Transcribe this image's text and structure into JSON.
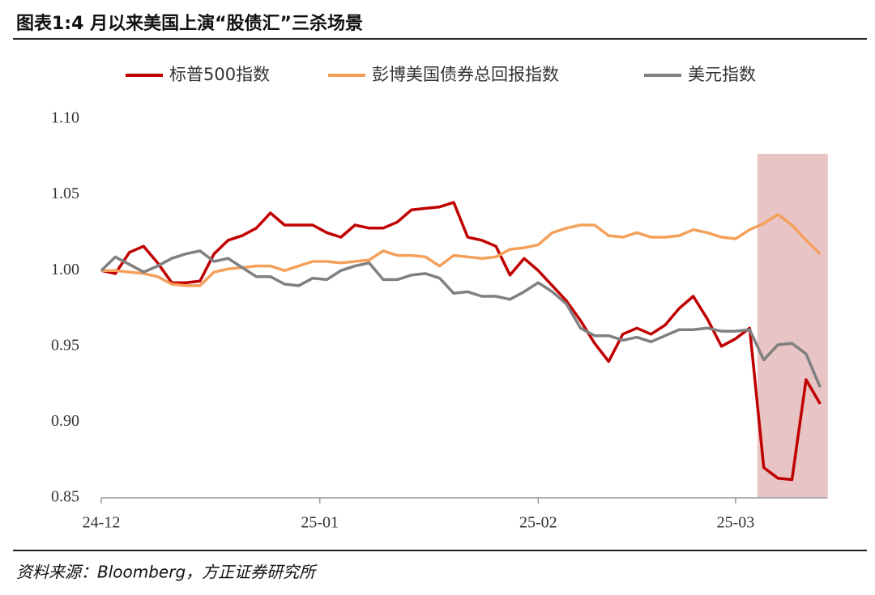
{
  "title": "图表1:4 月以来美国上演“股债汇”三杀场景",
  "source": "资料来源：Bloomberg，方正证券研究所",
  "chart_data": {
    "type": "line",
    "x": [
      0,
      2,
      4,
      6,
      8,
      10,
      12,
      14,
      16,
      18,
      20,
      22,
      24,
      26,
      28,
      30,
      32,
      34,
      36,
      38,
      40,
      42,
      44,
      46,
      48,
      50,
      52,
      54,
      56,
      58,
      60,
      62,
      64,
      66,
      68,
      70,
      72,
      74,
      76,
      78,
      80,
      82,
      84,
      86,
      88,
      90,
      92,
      94,
      96,
      98,
      100,
      102
    ],
    "xlim": [
      0,
      103
    ],
    "xticks": [
      {
        "value": 0,
        "label": "24-12"
      },
      {
        "value": 31,
        "label": "25-01"
      },
      {
        "value": 62,
        "label": "25-02"
      },
      {
        "value": 90,
        "label": "25-03"
      }
    ],
    "ylim": [
      0.85,
      1.1
    ],
    "yticks": [
      {
        "value": 0.85,
        "label": "0.85"
      },
      {
        "value": 0.9,
        "label": "0.90"
      },
      {
        "value": 0.95,
        "label": "0.95"
      },
      {
        "value": 1.0,
        "label": "1.00"
      },
      {
        "value": 1.05,
        "label": "1.05"
      },
      {
        "value": 1.1,
        "label": "1.10"
      }
    ],
    "grid": false,
    "legend": "top",
    "highlight": {
      "x": [
        93.1,
        103.1
      ],
      "y": [
        0.85,
        1.077
      ],
      "color": "#e8c4c4"
    },
    "series": [
      {
        "name": "标普500指数",
        "color": "#c00000",
        "values": [
          1.0,
          0.998,
          1.012,
          1.016,
          1.005,
          0.992,
          0.992,
          0.993,
          1.011,
          1.02,
          1.023,
          1.028,
          1.038,
          1.03,
          1.03,
          1.03,
          1.025,
          1.022,
          1.03,
          1.028,
          1.028,
          1.032,
          1.04,
          1.041,
          1.042,
          1.045,
          1.022,
          1.02,
          1.016,
          0.997,
          1.008,
          1.0,
          0.99,
          0.98,
          0.967,
          0.952,
          0.94,
          0.958,
          0.962,
          0.958,
          0.964,
          0.975,
          0.983,
          0.968,
          0.95,
          0.955,
          0.962,
          0.87,
          0.863,
          0.862,
          0.928,
          0.912
        ]
      },
      {
        "name": "彭博美国债券总回报指数",
        "color": "#f4a05a",
        "values": [
          1.0,
          1.0,
          0.999,
          0.998,
          0.996,
          0.991,
          0.99,
          0.99,
          0.999,
          1.001,
          1.002,
          1.003,
          1.003,
          1.0,
          1.003,
          1.006,
          1.006,
          1.005,
          1.006,
          1.007,
          1.013,
          1.01,
          1.01,
          1.009,
          1.003,
          1.01,
          1.009,
          1.008,
          1.009,
          1.014,
          1.015,
          1.017,
          1.025,
          1.028,
          1.03,
          1.03,
          1.023,
          1.022,
          1.025,
          1.022,
          1.022,
          1.023,
          1.027,
          1.025,
          1.022,
          1.021,
          1.027,
          1.031,
          1.037,
          1.03,
          1.02,
          1.011
        ]
      },
      {
        "name": "美元指数",
        "color": "#808080",
        "values": [
          1.0,
          1.009,
          1.004,
          0.999,
          1.003,
          1.008,
          1.011,
          1.013,
          1.006,
          1.008,
          1.002,
          0.996,
          0.996,
          0.991,
          0.99,
          0.995,
          0.994,
          1.0,
          1.003,
          1.005,
          0.994,
          0.994,
          0.997,
          0.998,
          0.995,
          0.985,
          0.986,
          0.983,
          0.983,
          0.981,
          0.986,
          0.992,
          0.986,
          0.978,
          0.962,
          0.957,
          0.957,
          0.954,
          0.956,
          0.953,
          0.957,
          0.961,
          0.961,
          0.962,
          0.96,
          0.96,
          0.961,
          0.941,
          0.951,
          0.952,
          0.945,
          0.923
        ]
      }
    ]
  }
}
